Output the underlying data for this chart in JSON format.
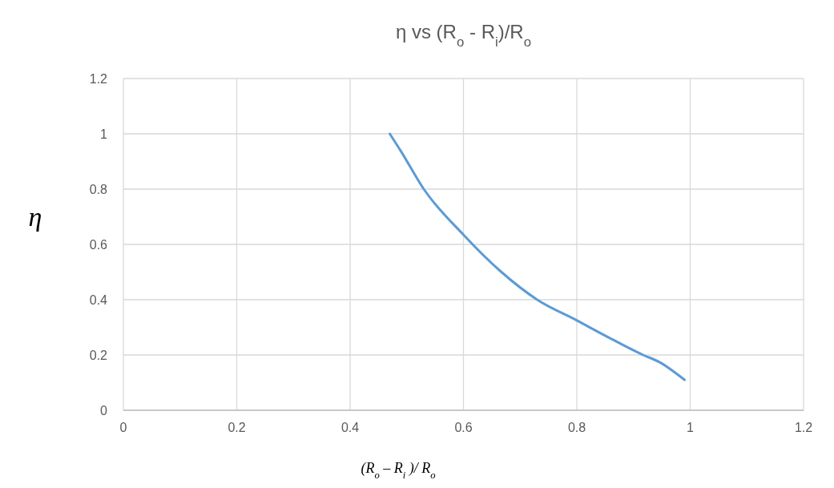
{
  "chart_data": {
    "type": "line",
    "title": "η vs (R$_{o}$ - R$_{i}$)/R$_{o}$",
    "xlabel": "(R$_{o}$ – R$_{i}$ )/ R$_{o}$",
    "ylabel": "η",
    "x": [
      0.47,
      0.49,
      0.53,
      0.6,
      0.667,
      0.73,
      0.8,
      0.85,
      0.917,
      0.945,
      0.99
    ],
    "series": [
      {
        "color": "#5b9bd5",
        "values": [
          1,
          0.936,
          0.8,
          0.635,
          0.5,
          0.4,
          0.325,
          0.27,
          0.2,
          0.175,
          0.11
        ]
      }
    ],
    "xlim": [
      0,
      1.2
    ],
    "xticks": [
      0,
      0.2,
      0.4,
      0.6,
      0.8,
      1,
      1.2
    ],
    "ylim": [
      0,
      1.2
    ],
    "yticks": [
      0,
      0.2,
      0.4,
      0.6,
      0.8,
      1,
      1.2
    ],
    "grid": true,
    "marker": "none",
    "line_style": "solid"
  }
}
